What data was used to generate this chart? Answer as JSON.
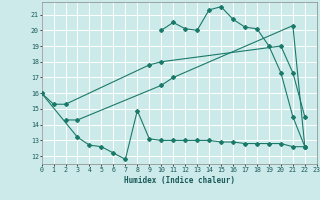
{
  "background_color": "#cdeaea",
  "grid_color": "#ffffff",
  "line_color": "#1a7a6a",
  "xlabel": "Humidex (Indice chaleur)",
  "xlim": [
    0,
    23
  ],
  "ylim": [
    11.5,
    21.8
  ],
  "yticks": [
    12,
    13,
    14,
    15,
    16,
    17,
    18,
    19,
    20,
    21
  ],
  "xticks": [
    0,
    1,
    2,
    3,
    4,
    5,
    6,
    7,
    8,
    9,
    10,
    11,
    12,
    13,
    14,
    15,
    16,
    17,
    18,
    19,
    20,
    21,
    22,
    23
  ],
  "line1_x": [
    10,
    11,
    12,
    13,
    14,
    15,
    16,
    17,
    18,
    19,
    20,
    21,
    22
  ],
  "line1_y": [
    20.0,
    20.5,
    20.1,
    20.0,
    21.3,
    21.5,
    20.7,
    20.2,
    20.1,
    19.0,
    17.3,
    14.5,
    12.6
  ],
  "line2_x": [
    0,
    1,
    2,
    9,
    10,
    20,
    21,
    22
  ],
  "line2_y": [
    16.0,
    15.3,
    15.3,
    17.8,
    18.0,
    19.0,
    17.3,
    14.5
  ],
  "line3_x": [
    2,
    3,
    10,
    11,
    21,
    22
  ],
  "line3_y": [
    14.3,
    14.3,
    16.5,
    17.0,
    20.3,
    12.6
  ],
  "line4_x": [
    0,
    3,
    4,
    5,
    6,
    7,
    8,
    9,
    10,
    11,
    12,
    13,
    14,
    15,
    16,
    17,
    18,
    19,
    20,
    21,
    22
  ],
  "line4_y": [
    16.0,
    13.2,
    12.7,
    12.6,
    12.2,
    11.8,
    14.9,
    13.1,
    13.0,
    13.0,
    13.0,
    13.0,
    13.0,
    12.9,
    12.9,
    12.8,
    12.8,
    12.8,
    12.8,
    12.6,
    12.6
  ]
}
